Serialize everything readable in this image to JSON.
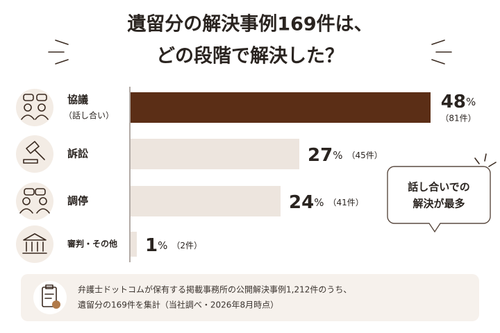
{
  "chart_data": {
    "type": "bar",
    "title": [
      "遺留分の解決事例169件は、",
      "どの段階で解決した？"
    ],
    "categories": [
      "協議",
      "訴訟",
      "調停",
      "審判・その他"
    ],
    "category_notes": [
      "（話し合い）",
      null,
      null,
      null
    ],
    "values": [
      48,
      27,
      24,
      1
    ],
    "unit": "%",
    "count_labels": [
      "（81件）",
      "（45件）",
      "（41件）",
      "（2件）"
    ],
    "colors": [
      "#5b2e16",
      "#ede5de",
      "#ede5de",
      "#ede5de"
    ],
    "xlim": [
      0,
      50
    ],
    "callout": [
      "話し合いでの",
      "解決が最多"
    ],
    "footnote": [
      "弁護士ドットコムが保有する掲載事務所の公開解決事例1,212件のうち、",
      "遺留分の169件を集計（当社調べ・2026年8月時点）"
    ]
  }
}
